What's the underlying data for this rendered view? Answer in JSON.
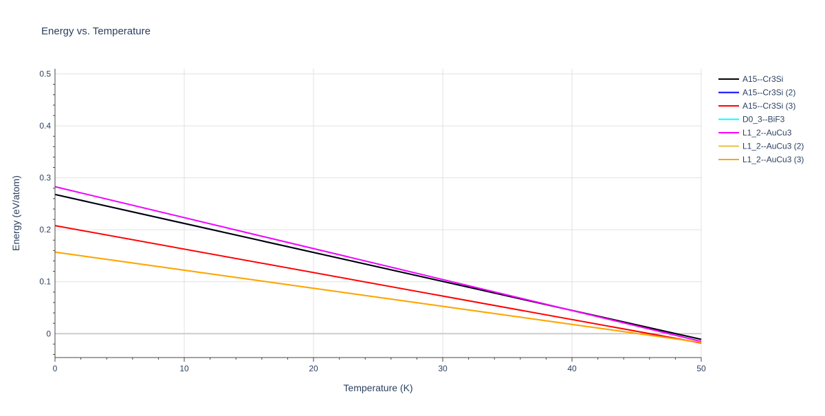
{
  "chart_data": {
    "type": "line",
    "title": "Energy vs. Temperature",
    "xlabel": "Temperature (K)",
    "ylabel": "Energy (eV/atom)",
    "xlim": [
      0,
      50
    ],
    "ylim": [
      -0.046,
      0.51
    ],
    "xticks": [
      0,
      10,
      20,
      30,
      40,
      50
    ],
    "yticks": [
      0,
      0.1,
      0.2,
      0.3,
      0.4,
      0.5
    ],
    "grid": true,
    "legend_position": "right",
    "x": [
      0,
      50
    ],
    "series": [
      {
        "name": "A15--Cr3Si",
        "color": "#000000",
        "values": [
          0.268,
          -0.011
        ]
      },
      {
        "name": "A15--Cr3Si (2)",
        "color": "#0000ff",
        "values": [
          0.268,
          -0.011
        ]
      },
      {
        "name": "A15--Cr3Si (3)",
        "color": "#ff0000",
        "values": [
          0.208,
          -0.018
        ]
      },
      {
        "name": "D0_3--BiF3",
        "color": "#00ffff",
        "values": [
          0.283,
          -0.015
        ]
      },
      {
        "name": "L1_2--AuCu3",
        "color": "#ff00ff",
        "values": [
          0.283,
          -0.015
        ]
      },
      {
        "name": "L1_2--AuCu3 (2)",
        "color": "#e8c13c",
        "values": [
          0.157,
          -0.017
        ]
      },
      {
        "name": "L1_2--AuCu3 (3)",
        "color": "#ffa500",
        "values": [
          0.157,
          -0.017
        ]
      }
    ]
  }
}
